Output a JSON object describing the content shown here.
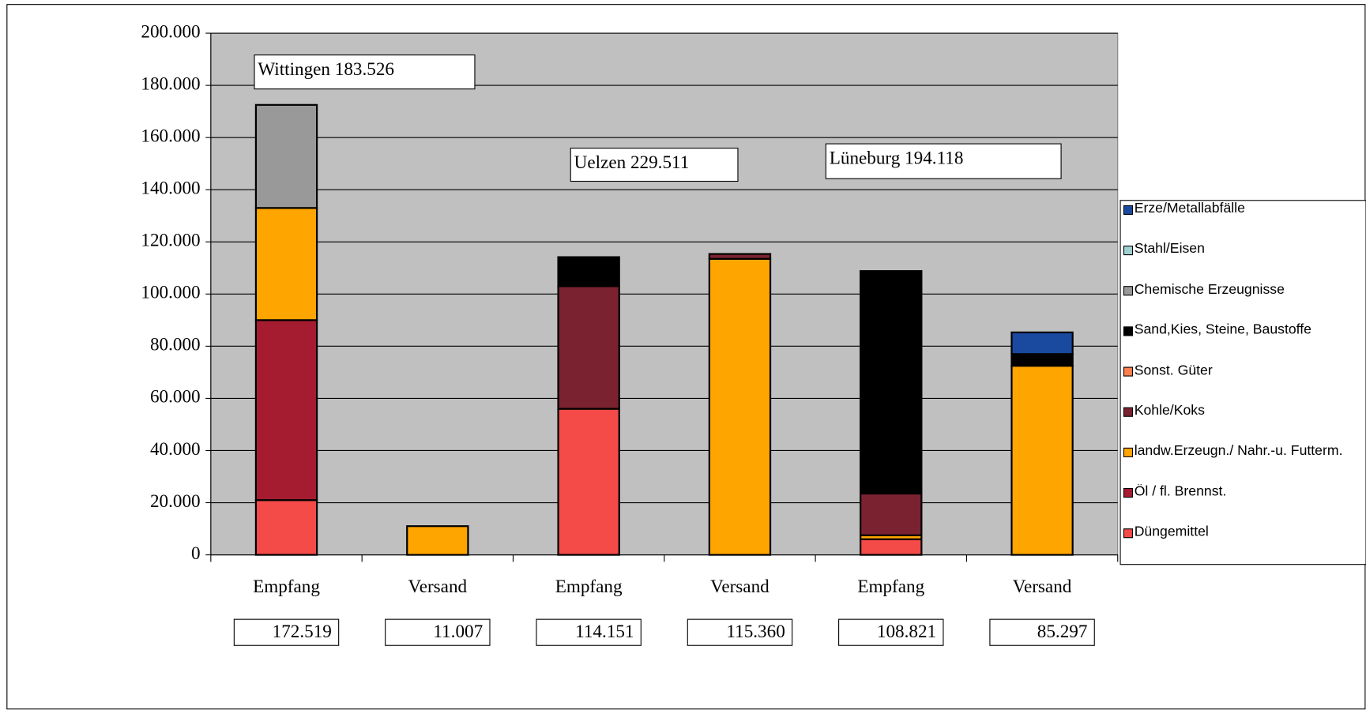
{
  "chart_data": {
    "type": "stacked_bar",
    "categories": [
      "Empfang",
      "Versand",
      "Empfang",
      "Versand",
      "Empfang",
      "Versand"
    ],
    "series": [
      {
        "name": "Düngemittel",
        "color": "#f44a48",
        "values": [
          21000,
          0,
          56000,
          0,
          6000,
          0
        ]
      },
      {
        "name": "Öl / fl. Brennst.",
        "color": "#a51c30",
        "values": [
          69000,
          0,
          0,
          0,
          0,
          0
        ]
      },
      {
        "name": "landw.Erzeugn./ Nahr.-u. Futterm.",
        "color": "#ffa500",
        "values": [
          43000,
          11007,
          0,
          113500,
          1500,
          72500
        ]
      },
      {
        "name": "Kohle/Koks",
        "color": "#7b2230",
        "values": [
          0,
          0,
          47000,
          1860,
          16000,
          0
        ]
      },
      {
        "name": "Sonst. Güter",
        "color": "#ff7f50",
        "values": [
          0,
          0,
          0,
          0,
          0,
          0
        ]
      },
      {
        "name": "Sand,Kies, Steine, Baustoffe",
        "color": "#000000",
        "values": [
          0,
          0,
          11151,
          0,
          85321,
          4500
        ]
      },
      {
        "name": "Chemische  Erzeugnisse",
        "color": "#999999",
        "values": [
          39519,
          0,
          0,
          0,
          0,
          0
        ]
      },
      {
        "name": "Stahl/Eisen",
        "color": "#a0d0d0",
        "values": [
          0,
          0,
          0,
          0,
          0,
          0
        ]
      },
      {
        "name": "Erze/Metallabfälle",
        "color": "#1a4aa0",
        "values": [
          0,
          0,
          0,
          0,
          0,
          8297
        ]
      }
    ],
    "totals": {
      "values": [
        172519,
        11007,
        114151,
        115360,
        108821,
        85297
      ],
      "value_labels": [
        "172.519",
        "11.007",
        "114.151",
        "115.360",
        "108.821",
        "85.297"
      ]
    },
    "annotations": [
      "Wittingen 183.526",
      "Uelzen 229.511",
      "Lüneburg 194.118"
    ],
    "ylim": [
      0,
      200000
    ],
    "yticks": [
      0,
      {
        "value": 20000,
        "label": "20.000"
      },
      {
        "value": 40000,
        "label": "40.000"
      },
      {
        "value": 60000,
        "label": "60.000"
      },
      {
        "value": 80000,
        "label": "80.000"
      },
      {
        "value": 100000,
        "label": "100.000"
      },
      {
        "value": 120000,
        "label": "120.000"
      },
      {
        "value": 140000,
        "label": "140.000"
      },
      {
        "value": 160000,
        "label": "160.000"
      },
      {
        "value": 180000,
        "label": "180.000"
      },
      {
        "value": 200000,
        "label": "200.000"
      }
    ],
    "grid": true,
    "plot_background": "#c0c0c0",
    "legend": "right"
  }
}
